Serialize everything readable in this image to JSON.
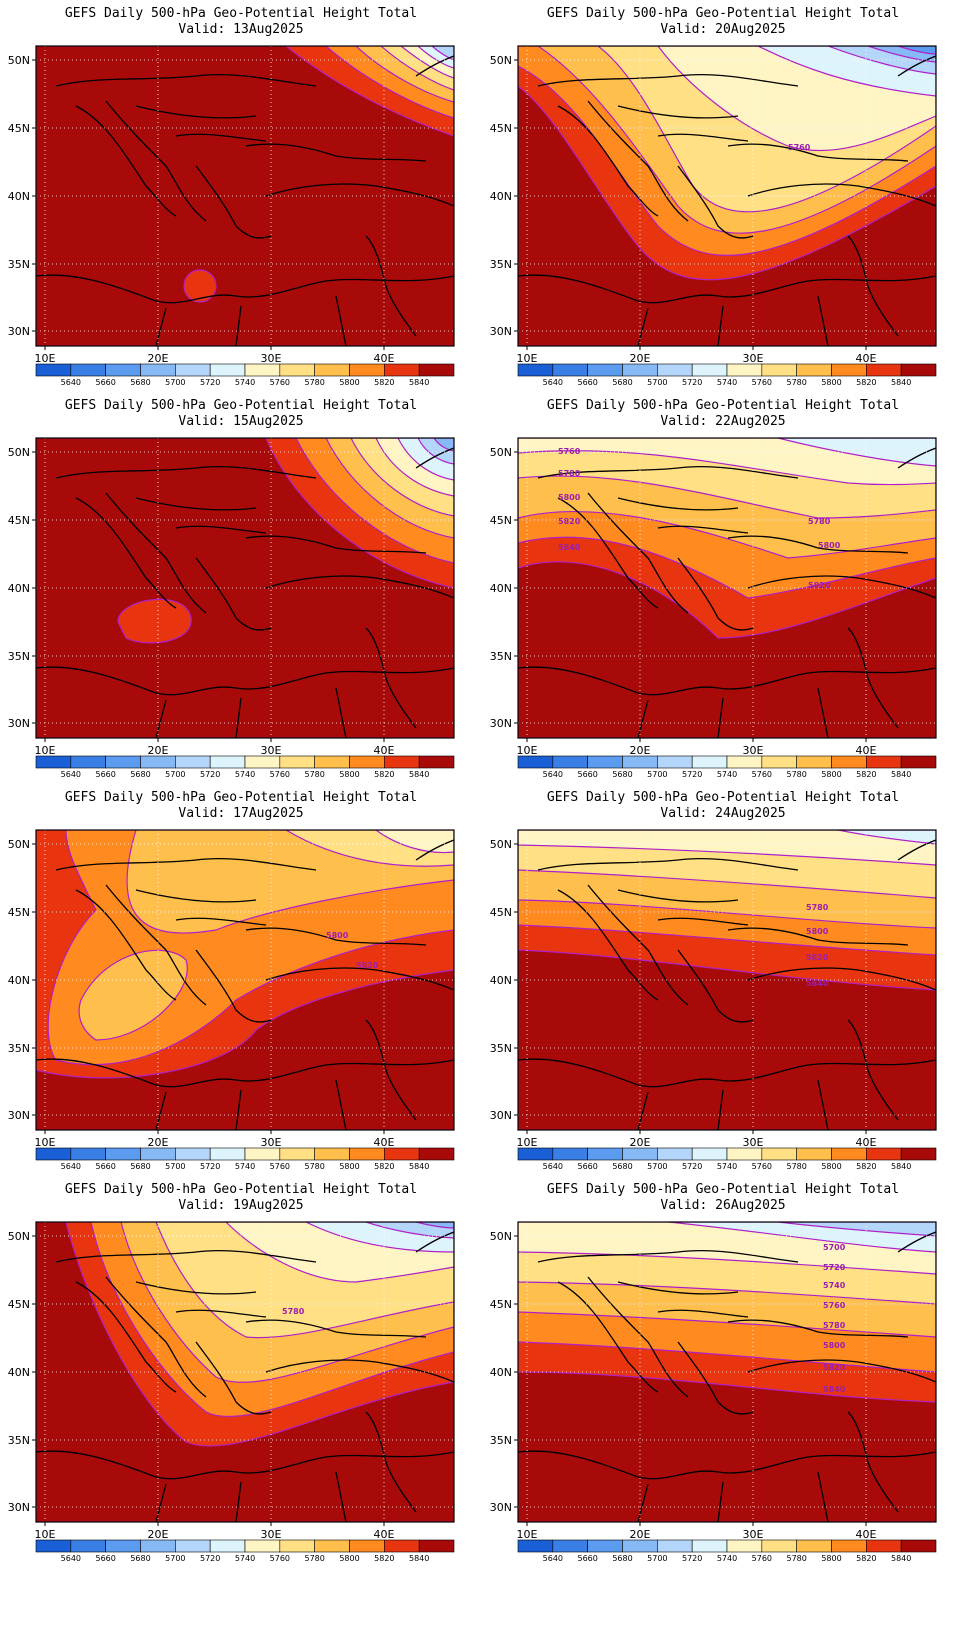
{
  "panels": [
    {
      "line1": "GEFS Daily 500-hPa Geo-Potential Height Total",
      "line2": "Valid: 13Aug2025"
    },
    {
      "line1": "GEFS Daily 500-hPa Geo-Potential Height Total",
      "line2": "Valid: 20Aug2025"
    },
    {
      "line1": "GEFS Daily 500-hPa Geo-Potential Height Total",
      "line2": "Valid: 15Aug2025"
    },
    {
      "line1": "GEFS Daily 500-hPa Geo-Potential Height Total",
      "line2": "Valid: 22Aug2025"
    },
    {
      "line1": "GEFS Daily 500-hPa Geo-Potential Height Total",
      "line2": "Valid: 17Aug2025"
    },
    {
      "line1": "GEFS Daily 500-hPa Geo-Potential Height Total",
      "line2": "Valid: 24Aug2025"
    },
    {
      "line1": "GEFS Daily 500-hPa Geo-Potential Height Total",
      "line2": "Valid: 19Aug2025"
    },
    {
      "line1": "GEFS Daily 500-hPa Geo-Potential Height Total",
      "line2": "Valid: 26Aug2025"
    }
  ],
  "axes": {
    "lon_ticks": [
      "10E",
      "20E",
      "30E",
      "40E"
    ],
    "lat_ticks": [
      "50N",
      "45N",
      "40N",
      "35N",
      "30N"
    ]
  },
  "colorbar": {
    "labels": [
      "5640",
      "5660",
      "5680",
      "5700",
      "5720",
      "5740",
      "5760",
      "5780",
      "5800",
      "5820",
      "5840"
    ],
    "colors": [
      "#1a5fd6",
      "#3a7fe6",
      "#5b9cf0",
      "#86b9f5",
      "#b3d6fa",
      "#def4fc",
      "#fff5c4",
      "#ffe085",
      "#ffbf4d",
      "#ff8a1f",
      "#e8340f",
      "#a80a0a"
    ]
  },
  "contour_labels": {
    "20Aug": [
      "5760"
    ],
    "22Aug": [
      "5760",
      "5780",
      "5800",
      "5820",
      "5780",
      "5800",
      "5820",
      "5840"
    ],
    "17Aug": [
      "5800",
      "5820"
    ],
    "24Aug": [
      "5780",
      "5800",
      "5820",
      "5840"
    ],
    "19Aug": [
      "5780"
    ],
    "26Aug": [
      "5700",
      "5720",
      "5740",
      "5760",
      "5780",
      "5800",
      "5820",
      "5840"
    ]
  },
  "colors": {
    "contour": "#b020c8",
    "deep_red": "#a80a0a",
    "coast": "#000000"
  }
}
